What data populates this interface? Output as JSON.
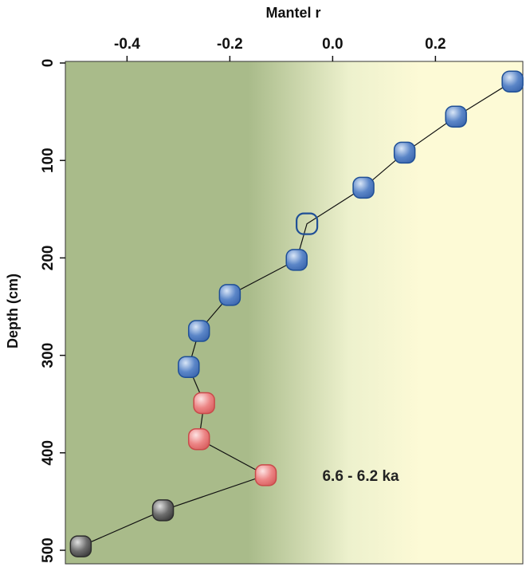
{
  "chart_data": {
    "type": "scatter",
    "title": "",
    "xlabel": "Mantel r",
    "ylabel": "Depth (cm)",
    "x_axis_position": "top",
    "y_axis_inverted": true,
    "xlim": [
      -0.52,
      0.37
    ],
    "ylim": [
      0,
      510
    ],
    "xticks": [
      -0.4,
      -0.2,
      0.0,
      0.2
    ],
    "xtick_labels": [
      "-0.4",
      "-0.2",
      "0.0",
      "0.2"
    ],
    "yticks": [
      0,
      100,
      200,
      300,
      400,
      500
    ],
    "ytick_labels": [
      "0",
      "100",
      "200",
      "300",
      "400",
      "500"
    ],
    "grid": false,
    "background": "gradient olive-green (left) to pale yellow (right)",
    "connect_points": true,
    "points": [
      {
        "x": 0.35,
        "y": 19,
        "group": "blue",
        "style": "filled"
      },
      {
        "x": 0.24,
        "y": 55,
        "group": "blue",
        "style": "filled"
      },
      {
        "x": 0.14,
        "y": 92,
        "group": "blue",
        "style": "filled"
      },
      {
        "x": 0.06,
        "y": 128,
        "group": "blue",
        "style": "filled"
      },
      {
        "x": -0.05,
        "y": 165,
        "group": "blue",
        "style": "hollow"
      },
      {
        "x": -0.07,
        "y": 202,
        "group": "blue",
        "style": "filled"
      },
      {
        "x": -0.2,
        "y": 238,
        "group": "blue",
        "style": "filled"
      },
      {
        "x": -0.26,
        "y": 275,
        "group": "blue",
        "style": "filled"
      },
      {
        "x": -0.28,
        "y": 312,
        "group": "blue",
        "style": "filled"
      },
      {
        "x": -0.25,
        "y": 349,
        "group": "red",
        "style": "filled"
      },
      {
        "x": -0.26,
        "y": 386,
        "group": "red",
        "style": "filled"
      },
      {
        "x": -0.13,
        "y": 423,
        "group": "red",
        "style": "filled"
      },
      {
        "x": -0.33,
        "y": 459,
        "group": "gray",
        "style": "filled"
      },
      {
        "x": -0.49,
        "y": 496,
        "group": "gray",
        "style": "filled"
      }
    ],
    "annotations": [
      {
        "text": "6.6 - 6.2 ka",
        "x": -0.02,
        "y": 423
      }
    ],
    "group_colors": {
      "blue": {
        "fill": "#5b86c8",
        "stroke": "#1f4f96",
        "highlight": "#d9e6f7"
      },
      "red": {
        "fill": "#ec8585",
        "stroke": "#c94a4a",
        "highlight": "#fde3e3"
      },
      "gray": {
        "fill": "#6d6d6d",
        "stroke": "#2d2d2d",
        "highlight": "#d8d8d8"
      }
    },
    "bg_colors": {
      "left": "#a9bb8a",
      "right": "#fdfad6"
    }
  }
}
